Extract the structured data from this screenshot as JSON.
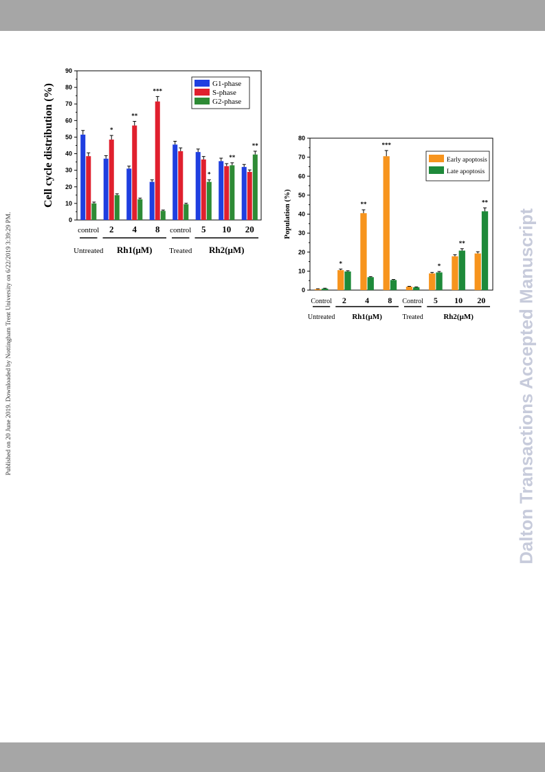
{
  "page": {
    "side_note": "Published on 20 June 2019. Downloaded by Nottingham Trent University on 6/22/2019 3:39:29 PM.",
    "watermark": "Dalton Transactions Accepted Manuscript"
  },
  "chart_data": [
    {
      "type": "bar",
      "ylabel": "Cell cycle distribution (%)",
      "ylim": [
        0,
        90
      ],
      "yticks": [
        0,
        10,
        20,
        30,
        40,
        50,
        60,
        70,
        80,
        90
      ],
      "categories": [
        "control",
        "2",
        "4",
        "8",
        "control",
        "5",
        "10",
        "20"
      ],
      "groups": [
        {
          "label": "Untreated",
          "from": 0,
          "to": 0
        },
        {
          "label": "Rh1(μM)",
          "from": 1,
          "to": 3
        },
        {
          "label": "Treated",
          "from": 4,
          "to": 4
        },
        {
          "label": "Rh2(μM)",
          "from": 5,
          "to": 7
        }
      ],
      "legend_position": "top-right",
      "series": [
        {
          "name": "G1-phase",
          "color": "#1f3fe0",
          "values": [
            51.5,
            37,
            31,
            23,
            45.5,
            41,
            35.5,
            32
          ],
          "errors": [
            2.5,
            1.8,
            1.5,
            1.2,
            2,
            1.8,
            1.8,
            1.5
          ]
        },
        {
          "name": "S-phase",
          "color": "#e0202e",
          "values": [
            38.5,
            48.5,
            57,
            71.5,
            41.5,
            36.5,
            32.5,
            29
          ],
          "errors": [
            2,
            2.5,
            2.5,
            3,
            2,
            1.8,
            1.5,
            1.2
          ]
        },
        {
          "name": "G2-phase",
          "color": "#2e8b35",
          "values": [
            10,
            15,
            12.5,
            5.5,
            9.5,
            23,
            33,
            39.5
          ],
          "errors": [
            0.8,
            0.8,
            0.7,
            0.5,
            0.6,
            1.2,
            1.5,
            2
          ]
        }
      ],
      "significance": [
        {
          "category": 1,
          "series": 1,
          "mark": "*"
        },
        {
          "category": 2,
          "series": 1,
          "mark": "**"
        },
        {
          "category": 3,
          "series": 1,
          "mark": "***"
        },
        {
          "category": 5,
          "series": 2,
          "mark": "*"
        },
        {
          "category": 6,
          "series": 2,
          "mark": "**"
        },
        {
          "category": 7,
          "series": 2,
          "mark": "**"
        }
      ]
    },
    {
      "type": "bar",
      "ylabel": "Population (%)",
      "ylim": [
        0,
        80
      ],
      "yticks": [
        0,
        10,
        20,
        30,
        40,
        50,
        60,
        70,
        80
      ],
      "categories": [
        "Control",
        "2",
        "4",
        "8",
        "Control",
        "5",
        "10",
        "20"
      ],
      "groups": [
        {
          "label": "Untreated",
          "from": 0,
          "to": 0
        },
        {
          "label": "Rh1(μM)",
          "from": 1,
          "to": 3
        },
        {
          "label": "Treated",
          "from": 4,
          "to": 4
        },
        {
          "label": "Rh2(μM)",
          "from": 5,
          "to": 7
        }
      ],
      "legend_position": "top-right",
      "series": [
        {
          "name": "Early apoptosis",
          "color": "#f7941d",
          "values": [
            0.5,
            10.5,
            40.5,
            70.5,
            1.8,
            8.8,
            17.8,
            19.3
          ],
          "errors": [
            0.2,
            0.6,
            1.8,
            3,
            0.2,
            0.5,
            0.8,
            0.9
          ]
        },
        {
          "name": "Late apoptosis",
          "color": "#1e8a3a",
          "values": [
            0.8,
            9.8,
            6.8,
            5.3,
            1.5,
            9.3,
            20.8,
            41.5
          ],
          "errors": [
            0.2,
            0.4,
            0.3,
            0.3,
            0.2,
            0.5,
            1,
            1.8
          ]
        }
      ],
      "significance": [
        {
          "category": 1,
          "series": 0,
          "mark": "*"
        },
        {
          "category": 2,
          "series": 0,
          "mark": "**"
        },
        {
          "category": 3,
          "series": 0,
          "mark": "***"
        },
        {
          "category": 5,
          "series": 1,
          "mark": "*"
        },
        {
          "category": 6,
          "series": 1,
          "mark": "**"
        },
        {
          "category": 7,
          "series": 1,
          "mark": "**"
        }
      ]
    }
  ]
}
